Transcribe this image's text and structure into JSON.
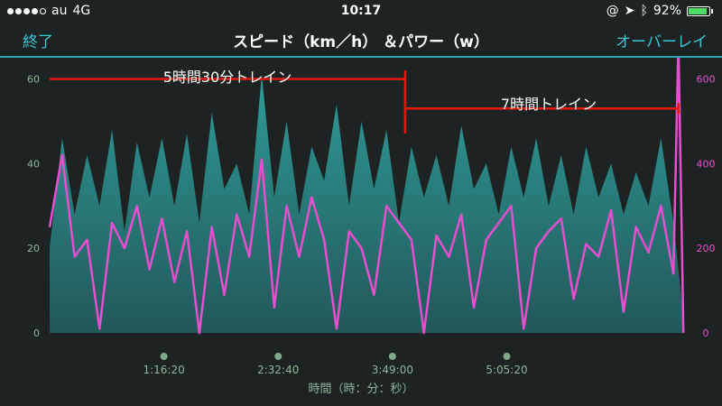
{
  "status": {
    "carrier": "au",
    "network": "4G",
    "time": "10:17",
    "battery_pct": "92%",
    "battery_level": 0.92,
    "signal_bars": 4,
    "signal_total": 5
  },
  "nav": {
    "left_label": "終了",
    "title": "スピード（km／h） ＆パワー（w）",
    "right_label": "オーバーレイ"
  },
  "colors": {
    "accent": "#3bc6d4",
    "speed_fill_top": "#2f9c98",
    "speed_fill_bottom": "#22575a",
    "power_line": "#e84fcf",
    "annotation": "#e3180f",
    "axis_text": "#8fb59a",
    "right_axis_text": "#e84fcf"
  },
  "annotations": [
    {
      "label": "5時間30分トレイン",
      "x_start": 0,
      "x_end": 14250,
      "y": 60
    },
    {
      "label": "7時間トレイン",
      "x_start": 14250,
      "x_end": 25200,
      "y": 53
    }
  ],
  "chart_data": {
    "type": "area",
    "title": "スピード（km／h） ＆パワー（w）",
    "xlabel": "時間（時：分：秒）",
    "ylabel": "",
    "xlim": [
      0,
      25500
    ],
    "x_ticks": [
      {
        "value": 4580,
        "label": "1:16:20"
      },
      {
        "value": 9160,
        "label": "2:32:40"
      },
      {
        "value": 13740,
        "label": "3:49:00"
      },
      {
        "value": 18320,
        "label": "5:05:20"
      }
    ],
    "left_axis": {
      "ylim": [
        0,
        65
      ],
      "ticks": [
        0,
        20,
        40,
        60
      ]
    },
    "right_axis": {
      "ylim": [
        0,
        650
      ],
      "ticks": [
        0,
        200,
        400,
        600
      ]
    },
    "grid": false,
    "series": [
      {
        "axis": "left",
        "style": "area",
        "x": [
          0,
          500,
          1000,
          1500,
          2000,
          2500,
          3000,
          3500,
          4000,
          4500,
          5000,
          5500,
          6000,
          6500,
          7000,
          7500,
          8000,
          8500,
          9000,
          9500,
          10000,
          10500,
          11000,
          11500,
          12000,
          12500,
          13000,
          13500,
          14000,
          14500,
          15000,
          15500,
          16000,
          16500,
          17000,
          17500,
          18000,
          18500,
          19000,
          19500,
          20000,
          20500,
          21000,
          21500,
          22000,
          22500,
          23000,
          23500,
          24000,
          24500,
          25000,
          25400
        ],
        "values": [
          20,
          46,
          28,
          42,
          30,
          48,
          24,
          45,
          32,
          46,
          30,
          47,
          26,
          52,
          34,
          40,
          28,
          61,
          32,
          50,
          28,
          44,
          36,
          54,
          30,
          50,
          34,
          48,
          26,
          44,
          32,
          42,
          30,
          49,
          34,
          40,
          28,
          44,
          32,
          46,
          30,
          42,
          28,
          44,
          32,
          40,
          28,
          38,
          30,
          46,
          26,
          4
        ]
      },
      {
        "axis": "right",
        "style": "line",
        "x": [
          0,
          500,
          1000,
          1500,
          2000,
          2500,
          3000,
          3500,
          4000,
          4500,
          5000,
          5500,
          6000,
          6500,
          7000,
          7500,
          8000,
          8500,
          9000,
          9500,
          10000,
          10500,
          11000,
          11500,
          12000,
          12500,
          13000,
          13500,
          14000,
          14500,
          15000,
          15500,
          16000,
          16500,
          17000,
          17500,
          18000,
          18500,
          19000,
          19500,
          20000,
          20500,
          21000,
          21500,
          22000,
          22500,
          23000,
          23500,
          24000,
          24500,
          25000,
          25200,
          25400
        ],
        "values": [
          250,
          420,
          180,
          220,
          10,
          260,
          200,
          300,
          150,
          270,
          120,
          240,
          0,
          250,
          90,
          280,
          180,
          410,
          60,
          300,
          180,
          320,
          220,
          10,
          240,
          200,
          90,
          300,
          260,
          220,
          0,
          230,
          180,
          280,
          60,
          220,
          260,
          300,
          10,
          200,
          240,
          270,
          80,
          210,
          180,
          290,
          50,
          250,
          190,
          300,
          140,
          690,
          0
        ]
      }
    ]
  }
}
